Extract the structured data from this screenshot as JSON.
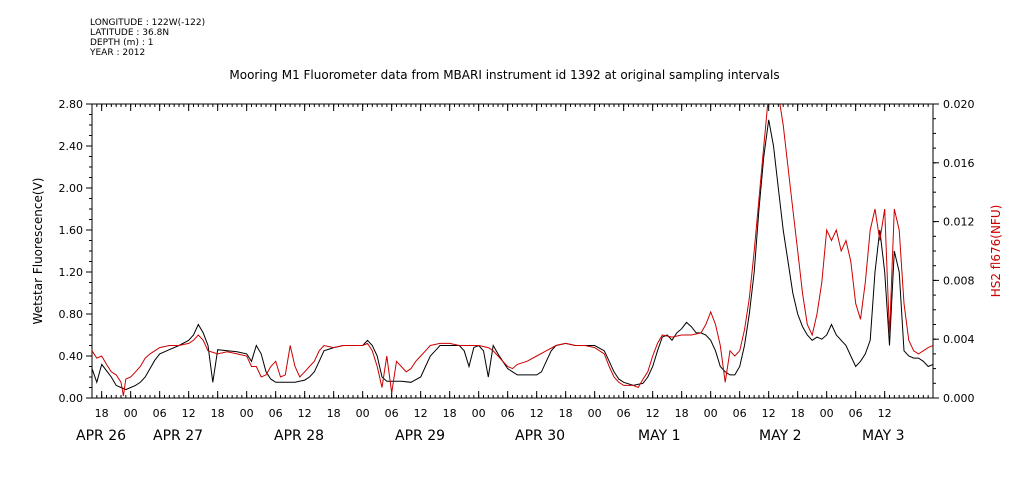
{
  "metadata_lines": [
    "LONGITUDE : 122W(-122)",
    "LATITUDE : 36.8N",
    "DEPTH (m) : 1",
    "YEAR : 2012"
  ],
  "chart_data": {
    "type": "line",
    "title": "Mooring M1 Fluorometer data from MBARI instrument id 1392 at original sampling intervals",
    "ylabel": "Wetstar Fluorescence(V)",
    "y2label": "HS2 fl676(NFU)",
    "ylim": [
      0,
      2.8
    ],
    "y2lim": [
      0,
      0.02
    ],
    "y_ticks": [
      "0.00",
      "0.40",
      "0.80",
      "1.20",
      "1.60",
      "2.00",
      "2.40",
      "2.80"
    ],
    "y2_ticks": [
      "0.000",
      "0.004",
      "0.008",
      "0.012",
      "0.016",
      "0.020"
    ],
    "x_hour_labels": [
      "18",
      "00",
      "06",
      "12",
      "18",
      "00",
      "06",
      "12",
      "18",
      "00",
      "06",
      "12",
      "18",
      "00",
      "06",
      "12",
      "18",
      "00",
      "06",
      "12",
      "18",
      "00",
      "06",
      "12",
      "18",
      "00",
      "06",
      "12"
    ],
    "x_day_labels": [
      "APR 26",
      "APR 27",
      "APR 28",
      "APR 29",
      "APR 30",
      "MAY 1",
      "MAY 2",
      "MAY 3"
    ],
    "x_hours_range": [
      -8,
      166
    ],
    "series": [
      {
        "color": "#000000",
        "axis": "left",
        "points": [
          [
            -8,
            0.28
          ],
          [
            -7,
            0.15
          ],
          [
            -6,
            0.32
          ],
          [
            -5,
            0.26
          ],
          [
            -4,
            0.2
          ],
          [
            -3,
            0.12
          ],
          [
            -2,
            0.1
          ],
          [
            -1,
            0.08
          ],
          [
            0,
            0.1
          ],
          [
            1,
            0.12
          ],
          [
            2,
            0.15
          ],
          [
            3,
            0.2
          ],
          [
            4,
            0.28
          ],
          [
            5,
            0.36
          ],
          [
            6,
            0.42
          ],
          [
            8,
            0.46
          ],
          [
            10,
            0.5
          ],
          [
            12,
            0.55
          ],
          [
            13,
            0.6
          ],
          [
            14,
            0.7
          ],
          [
            15,
            0.62
          ],
          [
            16,
            0.5
          ],
          [
            17,
            0.15
          ],
          [
            18,
            0.46
          ],
          [
            20,
            0.45
          ],
          [
            22,
            0.44
          ],
          [
            24,
            0.42
          ],
          [
            25,
            0.35
          ],
          [
            26,
            0.5
          ],
          [
            27,
            0.42
          ],
          [
            28,
            0.25
          ],
          [
            29,
            0.18
          ],
          [
            30,
            0.15
          ],
          [
            32,
            0.15
          ],
          [
            34,
            0.15
          ],
          [
            36,
            0.17
          ],
          [
            37,
            0.2
          ],
          [
            38,
            0.25
          ],
          [
            39,
            0.35
          ],
          [
            40,
            0.45
          ],
          [
            42,
            0.48
          ],
          [
            44,
            0.5
          ],
          [
            46,
            0.5
          ],
          [
            48,
            0.5
          ],
          [
            49,
            0.55
          ],
          [
            50,
            0.5
          ],
          [
            51,
            0.4
          ],
          [
            52,
            0.2
          ],
          [
            53,
            0.16
          ],
          [
            54,
            0.16
          ],
          [
            56,
            0.16
          ],
          [
            58,
            0.15
          ],
          [
            60,
            0.2
          ],
          [
            61,
            0.3
          ],
          [
            62,
            0.4
          ],
          [
            63,
            0.45
          ],
          [
            64,
            0.5
          ],
          [
            66,
            0.5
          ],
          [
            68,
            0.5
          ],
          [
            69,
            0.45
          ],
          [
            70,
            0.3
          ],
          [
            71,
            0.48
          ],
          [
            72,
            0.5
          ],
          [
            73,
            0.45
          ],
          [
            74,
            0.2
          ],
          [
            75,
            0.5
          ],
          [
            76,
            0.42
          ],
          [
            77,
            0.35
          ],
          [
            78,
            0.28
          ],
          [
            79,
            0.25
          ],
          [
            80,
            0.22
          ],
          [
            82,
            0.22
          ],
          [
            84,
            0.22
          ],
          [
            85,
            0.25
          ],
          [
            86,
            0.35
          ],
          [
            87,
            0.45
          ],
          [
            88,
            0.5
          ],
          [
            90,
            0.52
          ],
          [
            92,
            0.5
          ],
          [
            94,
            0.5
          ],
          [
            96,
            0.5
          ],
          [
            98,
            0.45
          ],
          [
            99,
            0.35
          ],
          [
            100,
            0.25
          ],
          [
            101,
            0.18
          ],
          [
            102,
            0.15
          ],
          [
            104,
            0.12
          ],
          [
            106,
            0.14
          ],
          [
            107,
            0.2
          ],
          [
            108,
            0.3
          ],
          [
            109,
            0.45
          ],
          [
            110,
            0.58
          ],
          [
            111,
            0.6
          ],
          [
            112,
            0.55
          ],
          [
            113,
            0.62
          ],
          [
            114,
            0.66
          ],
          [
            115,
            0.72
          ],
          [
            116,
            0.68
          ],
          [
            117,
            0.62
          ],
          [
            118,
            0.62
          ],
          [
            119,
            0.6
          ],
          [
            120,
            0.55
          ],
          [
            121,
            0.45
          ],
          [
            122,
            0.3
          ],
          [
            123,
            0.25
          ],
          [
            124,
            0.22
          ],
          [
            125,
            0.22
          ],
          [
            126,
            0.3
          ],
          [
            127,
            0.5
          ],
          [
            128,
            0.8
          ],
          [
            129,
            1.2
          ],
          [
            130,
            1.8
          ],
          [
            131,
            2.3
          ],
          [
            132,
            2.65
          ],
          [
            133,
            2.4
          ],
          [
            134,
            2.0
          ],
          [
            135,
            1.6
          ],
          [
            136,
            1.3
          ],
          [
            137,
            1.0
          ],
          [
            138,
            0.8
          ],
          [
            139,
            0.68
          ],
          [
            140,
            0.6
          ],
          [
            141,
            0.55
          ],
          [
            142,
            0.58
          ],
          [
            143,
            0.56
          ],
          [
            144,
            0.6
          ],
          [
            145,
            0.7
          ],
          [
            146,
            0.6
          ],
          [
            147,
            0.55
          ],
          [
            148,
            0.5
          ],
          [
            149,
            0.4
          ],
          [
            150,
            0.3
          ],
          [
            151,
            0.35
          ],
          [
            152,
            0.42
          ],
          [
            153,
            0.55
          ],
          [
            154,
            1.2
          ],
          [
            155,
            1.6
          ],
          [
            156,
            1.2
          ],
          [
            157,
            0.5
          ],
          [
            158,
            1.4
          ],
          [
            159,
            1.2
          ],
          [
            160,
            0.45
          ],
          [
            161,
            0.4
          ],
          [
            162,
            0.38
          ],
          [
            163,
            0.38
          ],
          [
            164,
            0.35
          ],
          [
            165,
            0.3
          ],
          [
            166,
            0.32
          ]
        ]
      },
      {
        "color": "#cc0000",
        "axis": "left",
        "points": [
          [
            -8,
            0.45
          ],
          [
            -7,
            0.38
          ],
          [
            -6,
            0.4
          ],
          [
            -5,
            0.32
          ],
          [
            -4,
            0.25
          ],
          [
            -3,
            0.22
          ],
          [
            -2,
            0.15
          ],
          [
            -1.5,
            0.02
          ],
          [
            -1,
            0.18
          ],
          [
            0,
            0.2
          ],
          [
            1,
            0.25
          ],
          [
            2,
            0.3
          ],
          [
            3,
            0.38
          ],
          [
            4,
            0.42
          ],
          [
            5,
            0.45
          ],
          [
            6,
            0.48
          ],
          [
            8,
            0.5
          ],
          [
            10,
            0.5
          ],
          [
            12,
            0.52
          ],
          [
            13,
            0.55
          ],
          [
            14,
            0.6
          ],
          [
            15,
            0.55
          ],
          [
            16,
            0.45
          ],
          [
            18,
            0.42
          ],
          [
            20,
            0.44
          ],
          [
            22,
            0.42
          ],
          [
            24,
            0.4
          ],
          [
            25,
            0.3
          ],
          [
            26,
            0.3
          ],
          [
            27,
            0.2
          ],
          [
            28,
            0.22
          ],
          [
            29,
            0.3
          ],
          [
            30,
            0.35
          ],
          [
            31,
            0.2
          ],
          [
            32,
            0.22
          ],
          [
            33,
            0.5
          ],
          [
            34,
            0.3
          ],
          [
            35,
            0.2
          ],
          [
            36,
            0.25
          ],
          [
            37,
            0.3
          ],
          [
            38,
            0.35
          ],
          [
            39,
            0.45
          ],
          [
            40,
            0.5
          ],
          [
            42,
            0.48
          ],
          [
            44,
            0.5
          ],
          [
            46,
            0.5
          ],
          [
            48,
            0.5
          ],
          [
            49,
            0.52
          ],
          [
            50,
            0.45
          ],
          [
            51,
            0.3
          ],
          [
            52,
            0.1
          ],
          [
            53,
            0.4
          ],
          [
            54,
            0.05
          ],
          [
            55,
            0.35
          ],
          [
            56,
            0.3
          ],
          [
            57,
            0.25
          ],
          [
            58,
            0.28
          ],
          [
            59,
            0.35
          ],
          [
            60,
            0.4
          ],
          [
            61,
            0.45
          ],
          [
            62,
            0.5
          ],
          [
            64,
            0.52
          ],
          [
            66,
            0.52
          ],
          [
            68,
            0.5
          ],
          [
            70,
            0.5
          ],
          [
            72,
            0.5
          ],
          [
            74,
            0.48
          ],
          [
            75,
            0.45
          ],
          [
            76,
            0.4
          ],
          [
            77,
            0.35
          ],
          [
            78,
            0.3
          ],
          [
            79,
            0.28
          ],
          [
            80,
            0.32
          ],
          [
            82,
            0.35
          ],
          [
            84,
            0.4
          ],
          [
            86,
            0.45
          ],
          [
            88,
            0.5
          ],
          [
            90,
            0.52
          ],
          [
            92,
            0.5
          ],
          [
            94,
            0.5
          ],
          [
            96,
            0.48
          ],
          [
            98,
            0.42
          ],
          [
            99,
            0.3
          ],
          [
            100,
            0.2
          ],
          [
            101,
            0.15
          ],
          [
            102,
            0.12
          ],
          [
            104,
            0.12
          ],
          [
            105,
            0.1
          ],
          [
            106,
            0.18
          ],
          [
            107,
            0.25
          ],
          [
            108,
            0.4
          ],
          [
            109,
            0.52
          ],
          [
            110,
            0.6
          ],
          [
            112,
            0.58
          ],
          [
            114,
            0.6
          ],
          [
            116,
            0.6
          ],
          [
            118,
            0.62
          ],
          [
            119,
            0.7
          ],
          [
            120,
            0.82
          ],
          [
            121,
            0.7
          ],
          [
            122,
            0.5
          ],
          [
            123,
            0.15
          ],
          [
            124,
            0.45
          ],
          [
            125,
            0.4
          ],
          [
            126,
            0.45
          ],
          [
            127,
            0.65
          ],
          [
            128,
            0.95
          ],
          [
            129,
            1.4
          ],
          [
            130,
            1.9
          ],
          [
            131,
            2.4
          ],
          [
            132,
            2.9
          ],
          [
            133,
            2.8
          ],
          [
            134,
            2.9
          ],
          [
            135,
            2.6
          ],
          [
            136,
            2.2
          ],
          [
            137,
            1.8
          ],
          [
            138,
            1.4
          ],
          [
            139,
            1.0
          ],
          [
            140,
            0.7
          ],
          [
            141,
            0.6
          ],
          [
            142,
            0.8
          ],
          [
            143,
            1.1
          ],
          [
            144,
            1.6
          ],
          [
            145,
            1.5
          ],
          [
            146,
            1.6
          ],
          [
            147,
            1.4
          ],
          [
            148,
            1.5
          ],
          [
            149,
            1.3
          ],
          [
            150,
            0.9
          ],
          [
            151,
            0.75
          ],
          [
            152,
            1.1
          ],
          [
            153,
            1.6
          ],
          [
            154,
            1.8
          ],
          [
            155,
            1.5
          ],
          [
            156,
            1.8
          ],
          [
            157,
            0.6
          ],
          [
            158,
            1.8
          ],
          [
            159,
            1.6
          ],
          [
            160,
            0.9
          ],
          [
            161,
            0.55
          ],
          [
            162,
            0.45
          ],
          [
            163,
            0.42
          ],
          [
            164,
            0.45
          ],
          [
            165,
            0.48
          ],
          [
            166,
            0.5
          ]
        ]
      }
    ]
  }
}
